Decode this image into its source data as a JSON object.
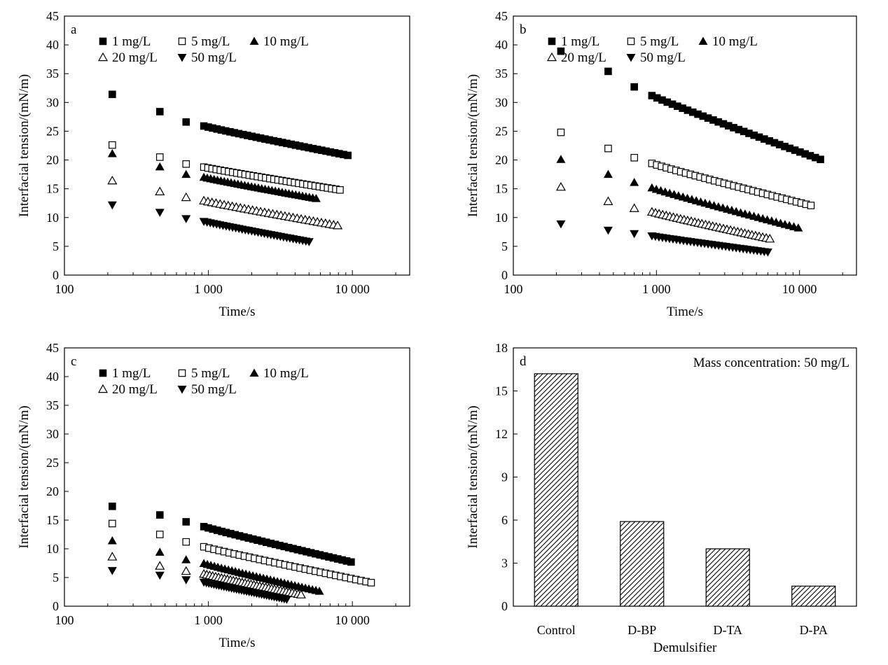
{
  "chart_data": [
    {
      "panel": "a",
      "type": "scatter",
      "xscale": "log",
      "xlim": [
        100,
        25000
      ],
      "ylim": [
        0,
        45
      ],
      "xticks": [
        100,
        1000,
        10000
      ],
      "xtick_labels": [
        "100",
        "1 000",
        "10 000"
      ],
      "yticks": [
        0,
        5,
        10,
        15,
        20,
        25,
        30,
        35,
        40,
        45
      ],
      "xlabel": "Time/s",
      "ylabel": "Interfacial tension/(mN/m)",
      "legend": [
        "1 mg/L",
        "5 mg/L",
        "10 mg/L",
        "20 mg/L",
        "50 mg/L"
      ],
      "series": [
        {
          "name": "1 mg/L",
          "marker": "square-filled",
          "start": 31.4,
          "second": 28.4,
          "third": 26.6,
          "end": 20.8,
          "tmax": 9300
        },
        {
          "name": "5 mg/L",
          "marker": "square-open",
          "start": 22.6,
          "second": 20.5,
          "third": 19.3,
          "end": 14.8,
          "tmax": 8200
        },
        {
          "name": "10 mg/L",
          "marker": "triangle-up-filled",
          "start": 21.1,
          "second": 18.8,
          "third": 17.5,
          "end": 13.3,
          "tmax": 5600
        },
        {
          "name": "20 mg/L",
          "marker": "triangle-up-open",
          "start": 16.4,
          "second": 14.5,
          "third": 13.5,
          "end": 8.6,
          "tmax": 7900
        },
        {
          "name": "50 mg/L",
          "marker": "triangle-down-filled",
          "start": 12.2,
          "second": 10.9,
          "third": 9.8,
          "end": 5.8,
          "tmax": 5000
        }
      ]
    },
    {
      "panel": "b",
      "type": "scatter",
      "xscale": "log",
      "xlim": [
        100,
        25000
      ],
      "ylim": [
        0,
        45
      ],
      "xticks": [
        100,
        1000,
        10000
      ],
      "xtick_labels": [
        "100",
        "1 000",
        "10 000"
      ],
      "yticks": [
        0,
        5,
        10,
        15,
        20,
        25,
        30,
        35,
        40,
        45
      ],
      "xlabel": "Time/s",
      "ylabel": "Interfacial tension/(mN/m)",
      "legend": [
        "1 mg/L",
        "5 mg/L",
        "10 mg/L",
        "20 mg/L",
        "50 mg/L"
      ],
      "series": [
        {
          "name": "1 mg/L",
          "marker": "square-filled",
          "start": 38.9,
          "second": 35.4,
          "third": 32.7,
          "end": 20.1,
          "tmax": 14000
        },
        {
          "name": "5 mg/L",
          "marker": "square-open",
          "start": 24.8,
          "second": 22.0,
          "third": 20.4,
          "end": 12.1,
          "tmax": 12000
        },
        {
          "name": "10 mg/L",
          "marker": "triangle-up-filled",
          "start": 20.1,
          "second": 17.5,
          "third": 16.1,
          "end": 8.2,
          "tmax": 9800
        },
        {
          "name": "20 mg/L",
          "marker": "triangle-up-open",
          "start": 15.3,
          "second": 12.8,
          "third": 11.6,
          "end": 6.3,
          "tmax": 6200
        },
        {
          "name": "50 mg/L",
          "marker": "triangle-down-filled",
          "start": 8.9,
          "second": 7.8,
          "third": 7.2,
          "end": 4.0,
          "tmax": 6000
        }
      ]
    },
    {
      "panel": "c",
      "type": "scatter",
      "xscale": "log",
      "xlim": [
        100,
        25000
      ],
      "ylim": [
        0,
        45
      ],
      "xticks": [
        100,
        1000,
        10000
      ],
      "xtick_labels": [
        "100",
        "1 000",
        "10 000"
      ],
      "yticks": [
        0,
        5,
        10,
        15,
        20,
        25,
        30,
        35,
        40,
        45
      ],
      "xlabel": "Time/s",
      "ylabel": "Interfacial tension/(mN/m)",
      "legend": [
        "1 mg/L",
        "5 mg/L",
        "10 mg/L",
        "20 mg/L",
        "50 mg/L"
      ],
      "series": [
        {
          "name": "1 mg/L",
          "marker": "square-filled",
          "start": 17.4,
          "second": 15.9,
          "third": 14.7,
          "end": 7.7,
          "tmax": 9800
        },
        {
          "name": "5 mg/L",
          "marker": "square-open",
          "start": 14.4,
          "second": 12.5,
          "third": 11.2,
          "end": 4.1,
          "tmax": 13500
        },
        {
          "name": "10 mg/L",
          "marker": "triangle-up-filled",
          "start": 11.4,
          "second": 9.4,
          "third": 8.1,
          "end": 2.6,
          "tmax": 5900
        },
        {
          "name": "20 mg/L",
          "marker": "triangle-up-open",
          "start": 8.6,
          "second": 7.0,
          "third": 6.1,
          "end": 2.0,
          "tmax": 4400
        },
        {
          "name": "50 mg/L",
          "marker": "triangle-down-filled",
          "start": 6.2,
          "second": 5.4,
          "third": 4.6,
          "end": 1.2,
          "tmax": 3500
        }
      ]
    },
    {
      "panel": "d",
      "type": "bar",
      "annotation": "Mass concentration: 50 mg/L",
      "categories": [
        "Control",
        "D-BP",
        "D-TA",
        "D-PA"
      ],
      "values": [
        16.2,
        5.9,
        4.0,
        1.4
      ],
      "ylim": [
        0,
        18
      ],
      "yticks": [
        0,
        3,
        6,
        9,
        12,
        15,
        18
      ],
      "xlabel": "Demulsifier",
      "ylabel": "Interfacial tension/(mN/m)",
      "fill": "hatched"
    }
  ]
}
